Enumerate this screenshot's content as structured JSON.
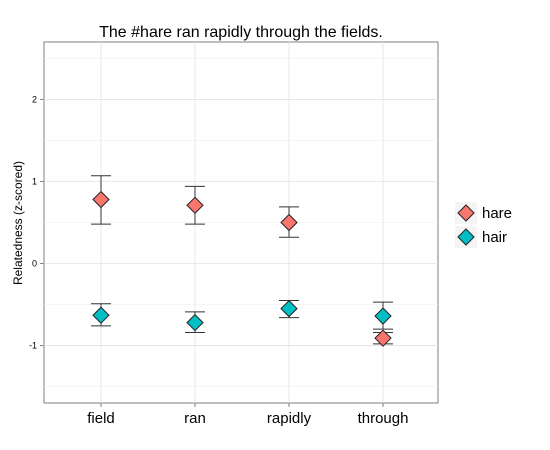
{
  "chart_data": {
    "type": "scatter",
    "title": "The #hare ran rapidly through the fields.",
    "xlabel": "",
    "ylabel": "Relatedness (z-scored)",
    "categories": [
      "field",
      "ran",
      "rapidly",
      "through"
    ],
    "ylim": [
      -1.7,
      2.7
    ],
    "yticks": [
      -1,
      0,
      1,
      2
    ],
    "grid": true,
    "legend_position": "right",
    "series": [
      {
        "name": "hare",
        "color": "#f8766d",
        "values": [
          0.78,
          0.71,
          0.5,
          -0.91
        ],
        "error_low": [
          0.48,
          0.48,
          0.32,
          -0.98
        ],
        "error_high": [
          1.07,
          0.94,
          0.69,
          -0.84
        ]
      },
      {
        "name": "hair",
        "color": "#00bfc4",
        "values": [
          -0.63,
          -0.72,
          -0.55,
          -0.64
        ],
        "error_low": [
          -0.76,
          -0.84,
          -0.66,
          -0.8
        ],
        "error_high": [
          -0.49,
          -0.59,
          -0.45,
          -0.47
        ]
      }
    ]
  }
}
